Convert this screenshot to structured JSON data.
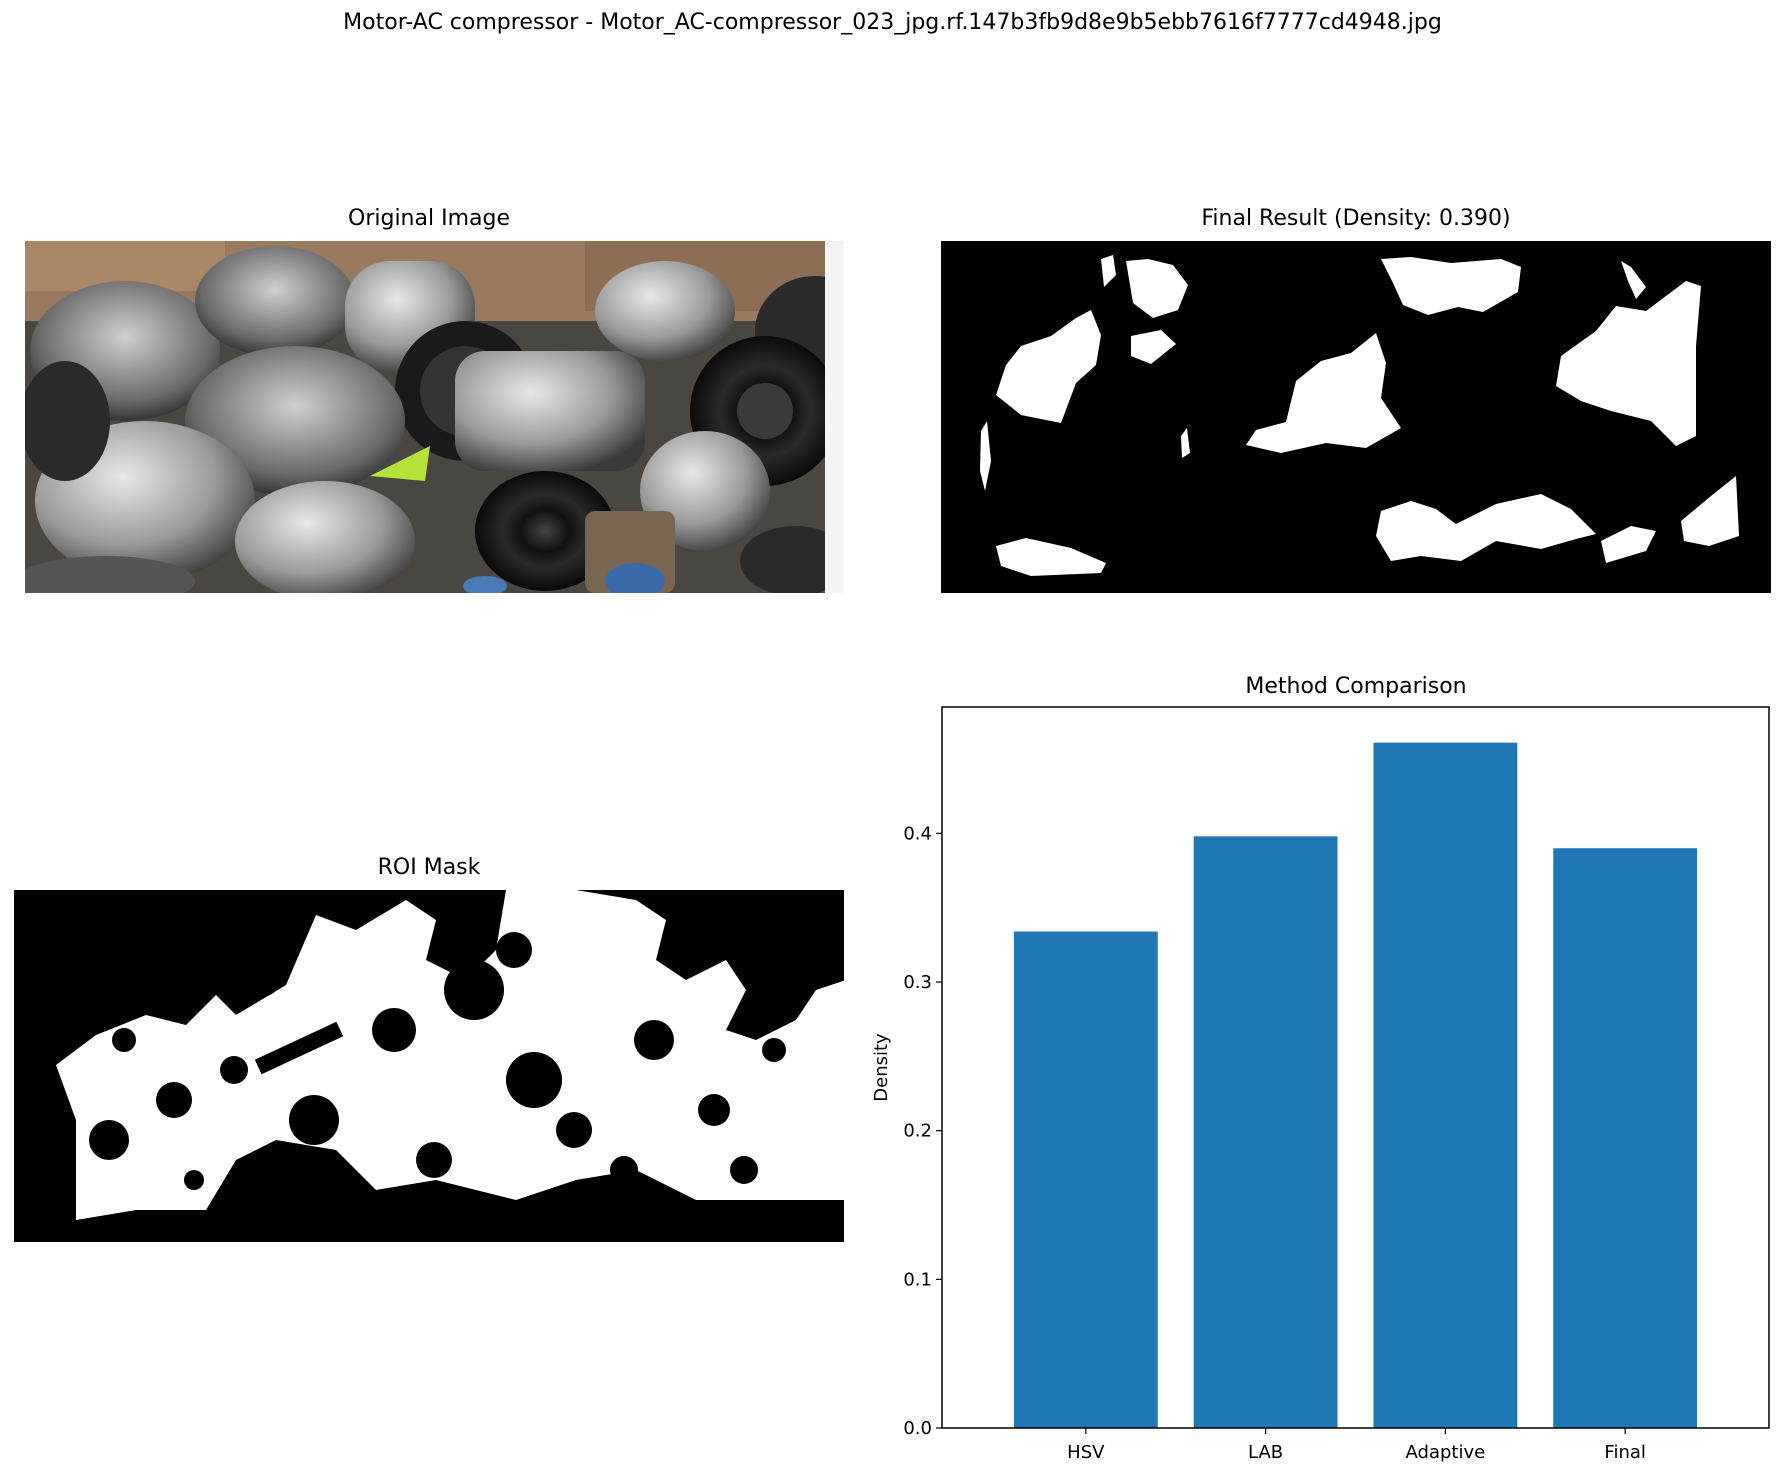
{
  "figure": {
    "suptitle": "Motor-AC compressor - Motor_AC-compressor_023_jpg.rf.147b3fb9d8e9b5ebb7616f7777cd4948.jpg"
  },
  "panels": {
    "original": {
      "title": "Original Image"
    },
    "final": {
      "title": "Final Result (Density: 0.390)"
    },
    "roi": {
      "title": "ROI Mask"
    }
  },
  "colors": {
    "bar": "#1f77b4",
    "mask_bg": "#000000",
    "mask_fg": "#ffffff"
  },
  "chart_data": {
    "type": "bar",
    "title": "Method Comparison",
    "xlabel": "",
    "ylabel": "Density",
    "categories": [
      "HSV",
      "LAB",
      "Adaptive",
      "Final"
    ],
    "values": [
      0.334,
      0.398,
      0.461,
      0.39
    ],
    "ylim": [
      0,
      0.485
    ],
    "yticks": [
      0.0,
      0.1,
      0.2,
      0.3,
      0.4
    ],
    "ytick_labels": [
      "0.0",
      "0.1",
      "0.2",
      "0.3",
      "0.4"
    ],
    "grid": false,
    "legend": "none"
  }
}
